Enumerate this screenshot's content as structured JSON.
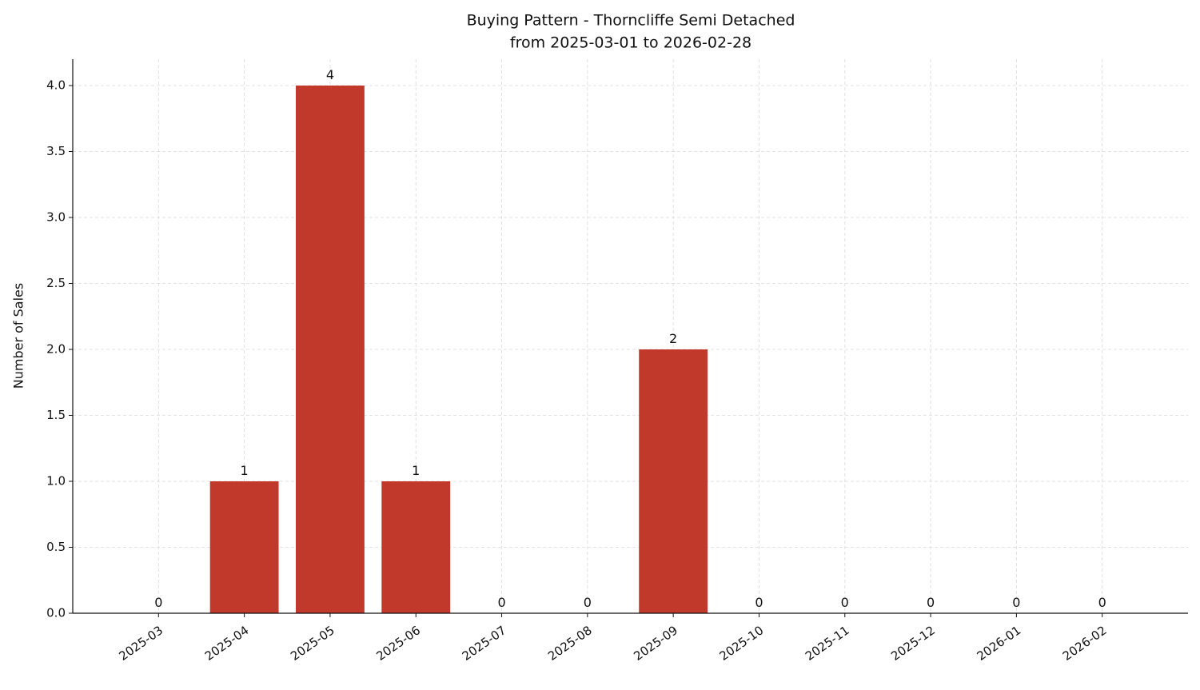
{
  "chart_data": {
    "type": "bar",
    "title": "Buying Pattern - Thorncliffe Semi Detached",
    "subtitle": "from 2025-03-01 to 2026-02-28",
    "y_label": "Number of Sales",
    "categories": [
      "2025-03",
      "2025-04",
      "2025-05",
      "2025-06",
      "2025-07",
      "2025-08",
      "2025-09",
      "2025-10",
      "2025-11",
      "2025-12",
      "2026-01",
      "2026-02"
    ],
    "values": [
      0,
      1,
      4,
      1,
      0,
      0,
      2,
      0,
      0,
      0,
      0,
      0
    ],
    "color": "#c0392b",
    "ylim": [
      0,
      4.2
    ],
    "yticks": [
      {
        "value": 0,
        "label": "0.0"
      },
      0.5,
      {
        "value": 1,
        "label": "1.0"
      },
      1.5,
      {
        "value": 2,
        "label": "2.0"
      },
      2.5,
      {
        "value": 3,
        "label": "3.0"
      },
      3.5,
      {
        "value": 4,
        "label": "4.0"
      }
    ],
    "grid": true
  }
}
